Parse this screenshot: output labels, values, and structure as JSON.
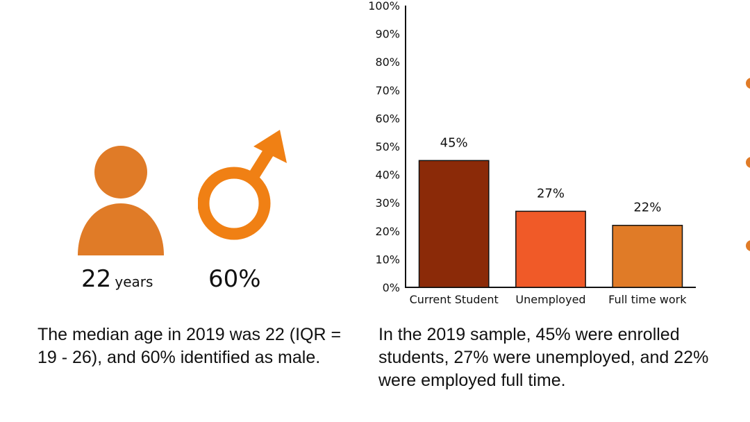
{
  "colors": {
    "accent": "#e07b27",
    "male": "#f08014",
    "bar1": "#8b2a08",
    "bar2": "#f05a28",
    "bar3": "#e07b27"
  },
  "stats": {
    "age": {
      "value": "22",
      "unit": "years",
      "icon": "person-icon"
    },
    "male": {
      "value": "60%",
      "icon": "male-symbol-icon"
    }
  },
  "captions": {
    "left": "The median age in 2019 was 22 (IQR = 19 - 26), and 60% identified as male.",
    "right": "In the 2019 sample, 45% were enrolled students, 27% were unemployed, and 22% were employed full time."
  },
  "chart_data": {
    "type": "bar",
    "categories": [
      "Current Student",
      "Unemployed",
      "Full time work"
    ],
    "values": [
      45,
      27,
      22
    ],
    "data_labels": [
      "45%",
      "27%",
      "22%"
    ],
    "yticks": [
      "0%",
      "10%",
      "20%",
      "30%",
      "40%",
      "50%",
      "60%",
      "70%",
      "80%",
      "90%",
      "100%"
    ],
    "ylim": [
      0,
      100
    ],
    "title": "",
    "xlabel": "",
    "ylabel": "",
    "grid": false
  }
}
